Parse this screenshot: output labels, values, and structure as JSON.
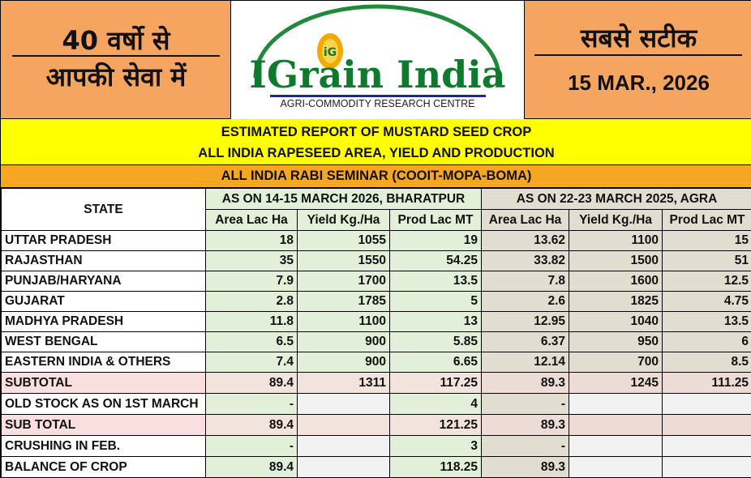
{
  "header": {
    "left_line1": "40 वर्षो से",
    "left_line2": "आपकी सेवा में",
    "right_line1": "सबसे सटीक",
    "date": "15 MAR.,  2026",
    "logo_name": "IGrain India",
    "logo_badge": "iG",
    "logo_subtitle": "AGRI-COMMODITY RESEARCH CENTRE"
  },
  "report": {
    "title1": "ESTIMATED REPORT OF MUSTARD SEED CROP",
    "title2": "ALL INDIA RAPESEED AREA, YIELD AND PRODUCTION",
    "seminar": "ALL INDIA RABI SEMINAR (COOIT-MOPA-BOMA)"
  },
  "table": {
    "state_header": "STATE",
    "group1": "AS ON 14-15 MARCH 2026, BHARATPUR",
    "group2": "AS ON 22-23 MARCH 2025, AGRA",
    "cols": [
      "Area Lac Ha",
      "Yield Kg./Ha",
      "Prod Lac MT",
      "Area Lac Ha",
      "Yield Kg./Ha",
      "Prod Lac MT"
    ],
    "rows": [
      {
        "state": "UTTAR PRADESH",
        "v": [
          "18",
          "1055",
          "19",
          "13.62",
          "1100",
          "15"
        ]
      },
      {
        "state": "RAJASTHAN",
        "v": [
          "35",
          "1550",
          "54.25",
          "33.82",
          "1500",
          "51"
        ]
      },
      {
        "state": "PUNJAB/HARYANA",
        "v": [
          "7.9",
          "1700",
          "13.5",
          "7.8",
          "1600",
          "12.5"
        ]
      },
      {
        "state": "GUJARAT",
        "v": [
          "2.8",
          "1785",
          "5",
          "2.6",
          "1825",
          "4.75"
        ]
      },
      {
        "state": "MADHYA PRADESH",
        "v": [
          "11.8",
          "1100",
          "13",
          "12.95",
          "1040",
          "13.5"
        ]
      },
      {
        "state": "WEST BENGAL",
        "v": [
          "6.5",
          "900",
          "5.85",
          "6.37",
          "950",
          "6"
        ]
      },
      {
        "state": "EASTERN INDIA & OTHERS",
        "v": [
          "7.4",
          "900",
          "6.65",
          "12.14",
          "700",
          "8.5"
        ]
      },
      {
        "state": "SUBTOTAL",
        "v": [
          "89.4",
          "1311",
          "117.25",
          "89.3",
          "1245",
          "111.25"
        ]
      },
      {
        "state": "OLD STOCK AS ON 1ST MARCH",
        "v": [
          "-",
          "",
          "4",
          "-",
          "",
          ""
        ]
      },
      {
        "state": "SUB TOTAL",
        "v": [
          "89.4",
          "",
          "121.25",
          "89.3",
          "",
          ""
        ]
      },
      {
        "state": "CRUSHING IN FEB.",
        "v": [
          "-",
          "",
          "3",
          "-",
          "",
          ""
        ]
      },
      {
        "state": "BALANCE OF CROP",
        "v": [
          "89.4",
          "",
          "118.25",
          "89.3",
          "",
          ""
        ]
      }
    ]
  },
  "colors": {
    "orange_panel": "#f5a560",
    "title_yellow": "#ffff00",
    "seminar_orange": "#f5a623",
    "logo_green": "#0f7a2e",
    "group1_bg": "#e2efd9",
    "group2_bg": "#e2ddd1"
  }
}
